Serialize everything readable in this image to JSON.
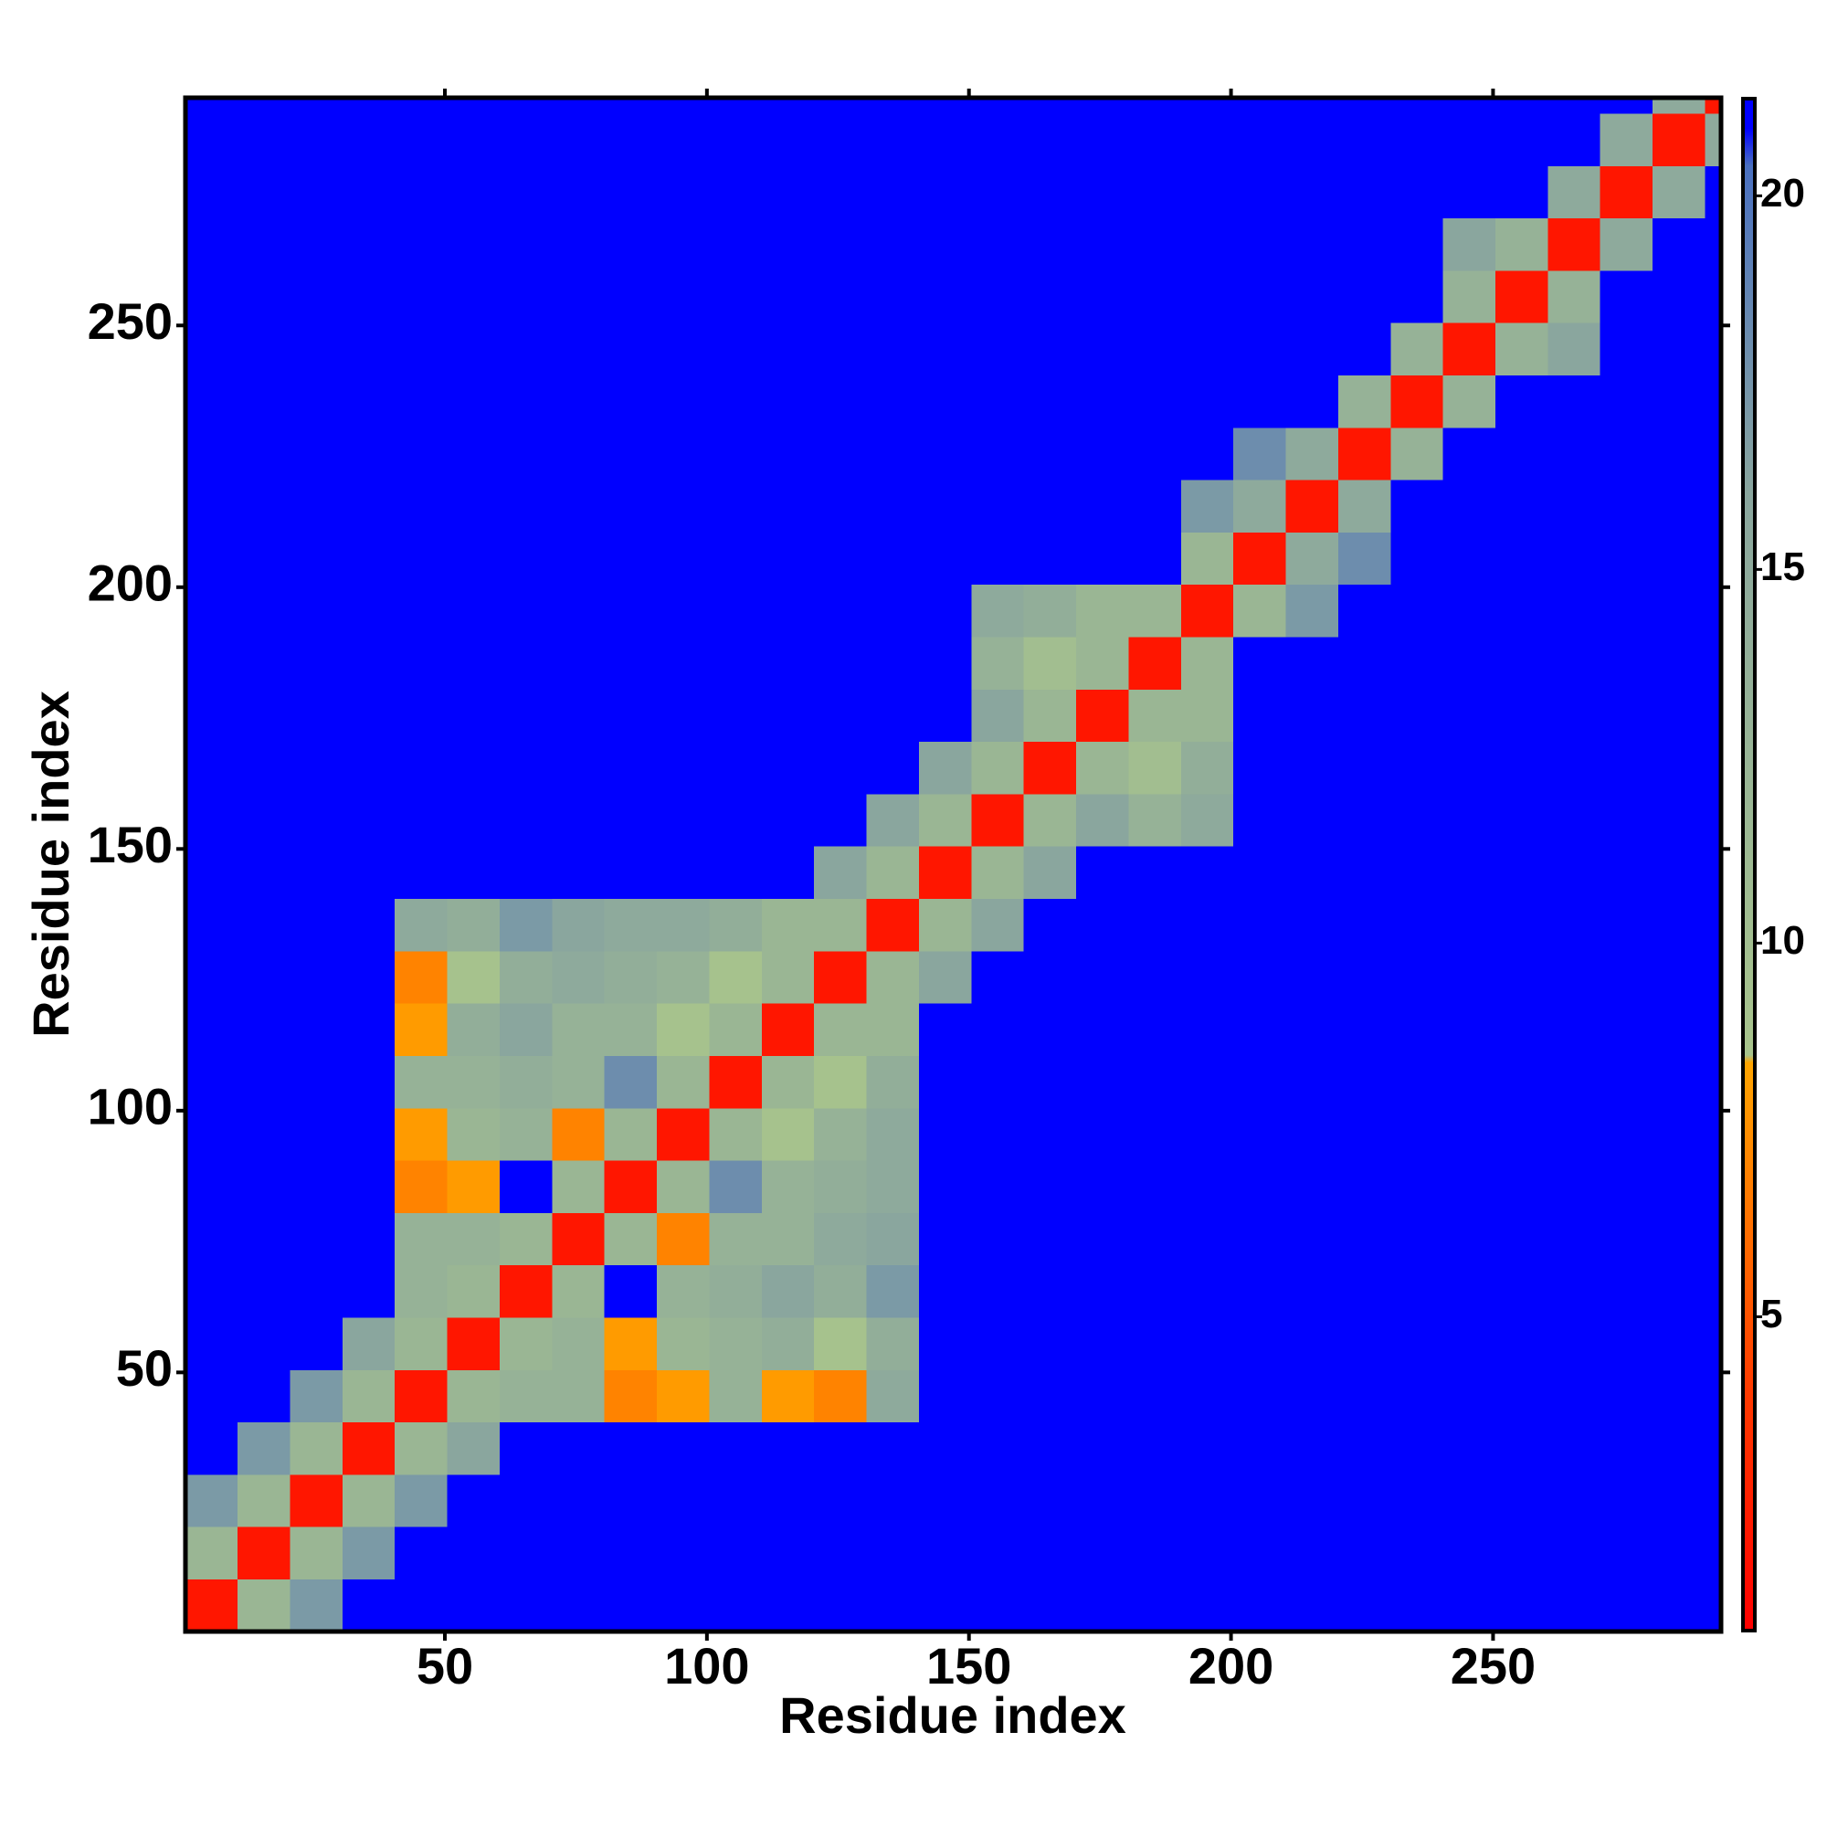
{
  "chart_data": {
    "type": "heatmap",
    "xlabel": "Residue index",
    "ylabel": "Residue index",
    "bins": [
      0.5,
      10.5,
      20.5,
      30.5,
      40.5,
      50.5,
      60.5,
      70.5,
      80.5,
      90.5,
      100.5,
      110.5,
      120.5,
      130.5,
      140.5,
      150.5,
      160.5,
      170.5,
      180.5,
      190.5,
      200.5,
      210.5,
      220.5,
      230.5,
      240.5,
      250.5,
      260.5,
      270.5,
      280.5,
      290.5,
      293.5
    ],
    "xlim": [
      0.5,
      293.5
    ],
    "ylim": [
      0.5,
      293.5
    ],
    "xticks": [
      50,
      100,
      150,
      200,
      250
    ],
    "yticks": [
      50,
      100,
      150,
      200,
      250
    ],
    "values": [
      [
        2,
        12,
        17,
        21,
        21,
        21,
        21,
        21,
        21,
        21,
        21,
        21,
        21,
        21,
        21,
        21,
        21,
        21,
        21,
        21,
        21,
        21,
        21,
        21,
        21,
        21,
        21,
        21,
        21,
        21
      ],
      [
        12,
        2,
        12,
        17,
        21,
        21,
        21,
        21,
        21,
        21,
        21,
        21,
        21,
        21,
        21,
        21,
        21,
        21,
        21,
        21,
        21,
        21,
        21,
        21,
        21,
        21,
        21,
        21,
        21,
        21
      ],
      [
        17,
        12,
        2,
        12,
        17,
        21,
        21,
        21,
        21,
        21,
        21,
        21,
        21,
        21,
        21,
        21,
        21,
        21,
        21,
        21,
        21,
        21,
        21,
        21,
        21,
        21,
        21,
        21,
        21,
        21
      ],
      [
        21,
        17,
        12,
        2,
        12,
        16,
        21,
        21,
        21,
        21,
        21,
        21,
        21,
        21,
        21,
        21,
        21,
        21,
        21,
        21,
        21,
        21,
        21,
        21,
        21,
        21,
        21,
        21,
        21,
        21
      ],
      [
        21,
        21,
        17,
        12,
        2,
        12,
        13,
        13,
        7,
        8,
        13,
        8,
        7,
        15,
        21,
        21,
        21,
        21,
        21,
        21,
        21,
        21,
        21,
        21,
        21,
        21,
        21,
        21,
        21,
        21
      ],
      [
        21,
        21,
        21,
        16,
        12,
        2,
        12,
        13,
        8,
        12,
        13,
        14,
        9,
        14,
        21,
        21,
        21,
        21,
        21,
        21,
        21,
        21,
        21,
        21,
        21,
        21,
        21,
        21,
        21,
        21
      ],
      [
        21,
        21,
        21,
        21,
        13,
        12,
        2,
        12,
        21,
        13,
        14,
        16,
        14,
        17,
        21,
        21,
        21,
        21,
        21,
        21,
        21,
        21,
        21,
        21,
        21,
        21,
        21,
        21,
        21,
        21
      ],
      [
        21,
        21,
        21,
        21,
        13,
        13,
        12,
        2,
        12,
        7,
        13,
        13,
        15,
        16,
        21,
        21,
        21,
        21,
        21,
        21,
        21,
        21,
        21,
        21,
        21,
        21,
        21,
        21,
        21,
        21
      ],
      [
        21,
        21,
        21,
        21,
        7,
        8,
        21,
        12,
        2,
        12,
        18,
        13,
        14,
        15,
        21,
        21,
        21,
        21,
        21,
        21,
        21,
        21,
        21,
        21,
        21,
        21,
        21,
        21,
        21,
        21
      ],
      [
        21,
        21,
        21,
        21,
        8,
        12,
        13,
        7,
        12,
        2,
        12,
        9,
        13,
        15,
        21,
        21,
        21,
        21,
        21,
        21,
        21,
        21,
        21,
        21,
        21,
        21,
        21,
        21,
        21,
        21
      ],
      [
        21,
        21,
        21,
        21,
        13,
        13,
        14,
        13,
        18,
        12,
        2,
        12,
        9,
        14,
        21,
        21,
        21,
        21,
        21,
        21,
        21,
        21,
        21,
        21,
        21,
        21,
        21,
        21,
        21,
        21
      ],
      [
        21,
        21,
        21,
        21,
        8,
        14,
        16,
        13,
        13,
        9,
        12,
        2,
        12,
        12,
        21,
        21,
        21,
        21,
        21,
        21,
        21,
        21,
        21,
        21,
        21,
        21,
        21,
        21,
        21,
        21
      ],
      [
        21,
        21,
        21,
        21,
        7,
        9,
        14,
        15,
        14,
        13,
        9,
        12,
        2,
        12,
        16,
        21,
        21,
        21,
        21,
        21,
        21,
        21,
        21,
        21,
        21,
        21,
        21,
        21,
        21,
        21
      ],
      [
        21,
        21,
        21,
        21,
        15,
        14,
        17,
        16,
        15,
        15,
        14,
        12,
        12,
        2,
        12,
        16,
        21,
        21,
        21,
        21,
        21,
        21,
        21,
        21,
        21,
        21,
        21,
        21,
        21,
        21
      ],
      [
        21,
        21,
        21,
        21,
        21,
        21,
        21,
        21,
        21,
        21,
        21,
        21,
        16,
        12,
        2,
        12,
        16,
        21,
        21,
        21,
        21,
        21,
        21,
        21,
        21,
        21,
        21,
        21,
        21,
        21
      ],
      [
        21,
        21,
        21,
        21,
        21,
        21,
        21,
        21,
        21,
        21,
        21,
        21,
        21,
        16,
        12,
        2,
        12,
        16,
        13,
        15,
        21,
        21,
        21,
        21,
        21,
        21,
        21,
        21,
        21,
        21
      ],
      [
        21,
        21,
        21,
        21,
        21,
        21,
        21,
        21,
        21,
        21,
        21,
        21,
        21,
        21,
        16,
        12,
        2,
        12,
        10,
        14,
        21,
        21,
        21,
        21,
        21,
        21,
        21,
        21,
        21,
        21
      ],
      [
        21,
        21,
        21,
        21,
        21,
        21,
        21,
        21,
        21,
        21,
        21,
        21,
        21,
        21,
        21,
        16,
        12,
        2,
        12,
        12,
        21,
        21,
        21,
        21,
        21,
        21,
        21,
        21,
        21,
        21
      ],
      [
        21,
        21,
        21,
        21,
        21,
        21,
        21,
        21,
        21,
        21,
        21,
        21,
        21,
        21,
        21,
        13,
        10,
        12,
        2,
        12,
        21,
        21,
        21,
        21,
        21,
        21,
        21,
        21,
        21,
        21
      ],
      [
        21,
        21,
        21,
        21,
        21,
        21,
        21,
        21,
        21,
        21,
        21,
        21,
        21,
        21,
        21,
        15,
        14,
        12,
        12,
        2,
        12,
        17,
        21,
        21,
        21,
        21,
        21,
        21,
        21,
        21
      ],
      [
        21,
        21,
        21,
        21,
        21,
        21,
        21,
        21,
        21,
        21,
        21,
        21,
        21,
        21,
        21,
        21,
        21,
        21,
        21,
        12,
        2,
        15,
        18,
        21,
        21,
        21,
        21,
        21,
        21,
        21
      ],
      [
        21,
        21,
        21,
        21,
        21,
        21,
        21,
        21,
        21,
        21,
        21,
        21,
        21,
        21,
        21,
        21,
        21,
        21,
        21,
        17,
        15,
        2,
        15,
        21,
        21,
        21,
        21,
        21,
        21,
        21
      ],
      [
        21,
        21,
        21,
        21,
        21,
        21,
        21,
        21,
        21,
        21,
        21,
        21,
        21,
        21,
        21,
        21,
        21,
        21,
        21,
        21,
        18,
        15,
        2,
        13,
        21,
        21,
        21,
        21,
        21,
        21
      ],
      [
        21,
        21,
        21,
        21,
        21,
        21,
        21,
        21,
        21,
        21,
        21,
        21,
        21,
        21,
        21,
        21,
        21,
        21,
        21,
        21,
        21,
        21,
        13,
        2,
        13,
        21,
        21,
        21,
        21,
        21
      ],
      [
        21,
        21,
        21,
        21,
        21,
        21,
        21,
        21,
        21,
        21,
        21,
        21,
        21,
        21,
        21,
        21,
        21,
        21,
        21,
        21,
        21,
        21,
        21,
        13,
        2,
        13,
        16,
        21,
        21,
        21
      ],
      [
        21,
        21,
        21,
        21,
        21,
        21,
        21,
        21,
        21,
        21,
        21,
        21,
        21,
        21,
        21,
        21,
        21,
        21,
        21,
        21,
        21,
        21,
        21,
        21,
        13,
        2,
        13,
        21,
        21,
        21
      ],
      [
        21,
        21,
        21,
        21,
        21,
        21,
        21,
        21,
        21,
        21,
        21,
        21,
        21,
        21,
        21,
        21,
        21,
        21,
        21,
        21,
        21,
        21,
        21,
        21,
        16,
        13,
        2,
        15,
        21,
        21
      ],
      [
        21,
        21,
        21,
        21,
        21,
        21,
        21,
        21,
        21,
        21,
        21,
        21,
        21,
        21,
        21,
        21,
        21,
        21,
        21,
        21,
        21,
        21,
        21,
        21,
        21,
        21,
        15,
        2,
        15,
        21
      ],
      [
        21,
        21,
        21,
        21,
        21,
        21,
        21,
        21,
        21,
        21,
        21,
        21,
        21,
        21,
        21,
        21,
        21,
        21,
        21,
        21,
        21,
        21,
        21,
        21,
        21,
        21,
        21,
        15,
        2,
        15
      ],
      [
        21,
        21,
        21,
        21,
        21,
        21,
        21,
        21,
        21,
        21,
        21,
        21,
        21,
        21,
        21,
        21,
        21,
        21,
        21,
        21,
        21,
        21,
        21,
        21,
        21,
        21,
        21,
        21,
        15,
        2
      ]
    ],
    "colorscale": [
      [
        0.8,
        "#ff0000"
      ],
      [
        4,
        "#ff3a00"
      ],
      [
        8.4,
        "#ffa500"
      ],
      [
        8.5,
        "#a8c48c"
      ],
      [
        16,
        "#8aa69e"
      ],
      [
        20.4,
        "#4a70c0"
      ],
      [
        20.9,
        "#0000ff"
      ],
      [
        21.3,
        "#0000ff"
      ]
    ],
    "colorbar_lim": [
      0.8,
      21.3
    ],
    "colorbar_ticks": [
      5,
      10,
      15,
      20
    ]
  }
}
